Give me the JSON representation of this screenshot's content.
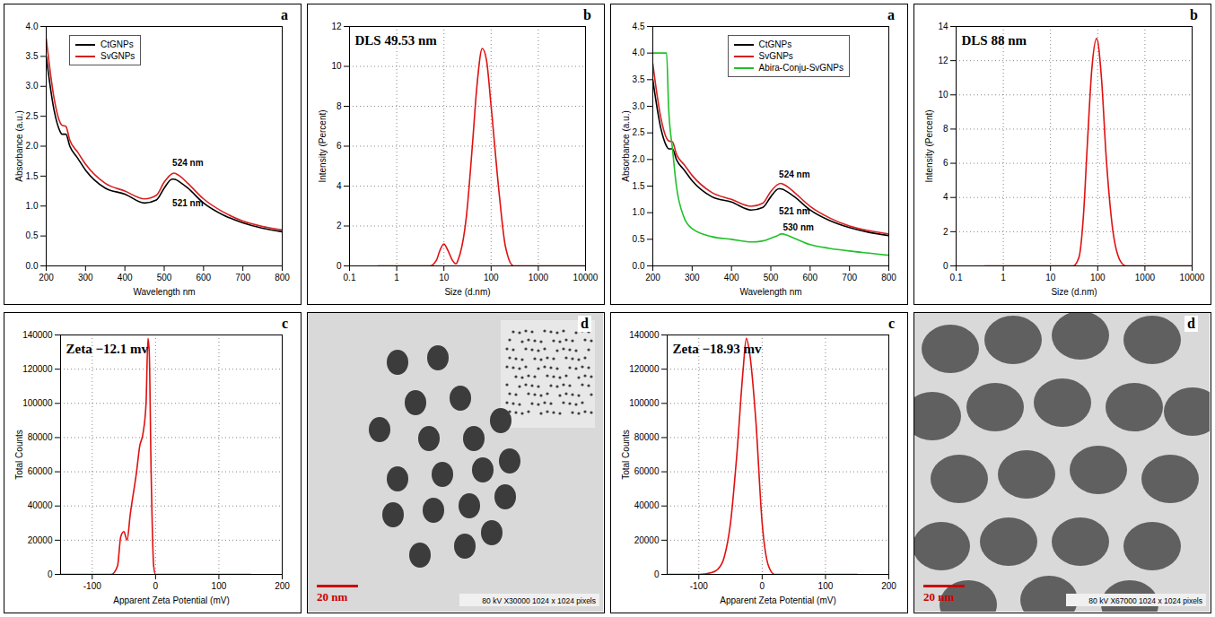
{
  "chart_data": [
    {
      "type": "line",
      "panel_label": "a",
      "x_label": "Wavelength nm",
      "y_label": "Absorbance (a.u.)",
      "x": [
        200,
        220,
        235,
        240,
        250,
        260,
        280,
        300,
        350,
        400,
        450,
        480,
        500,
        520,
        525,
        530,
        540,
        560,
        600,
        650,
        700,
        750,
        800
      ],
      "series": [
        {
          "name": "CtGNPs",
          "color": "#000000",
          "values": [
            3.5,
            2.6,
            2.25,
            2.2,
            2.2,
            2.0,
            1.8,
            1.6,
            1.3,
            1.2,
            1.05,
            1.1,
            1.3,
            1.45,
            1.45,
            1.44,
            1.4,
            1.3,
            1.05,
            0.85,
            0.72,
            0.63,
            0.57
          ]
        },
        {
          "name": "SvGNPs",
          "color": "#d62020",
          "values": [
            3.8,
            2.8,
            2.4,
            2.35,
            2.33,
            2.1,
            1.9,
            1.7,
            1.38,
            1.25,
            1.12,
            1.18,
            1.4,
            1.54,
            1.55,
            1.54,
            1.5,
            1.38,
            1.12,
            0.9,
            0.75,
            0.66,
            0.6
          ]
        }
      ],
      "xlim": [
        200,
        800
      ],
      "xticks": [
        200,
        300,
        400,
        500,
        600,
        700,
        800
      ],
      "ylim": [
        0,
        4
      ],
      "yticks": [
        {
          "value": 0,
          "label": "0.0"
        },
        0.5,
        {
          "value": 1,
          "label": "1.0"
        },
        1.5,
        {
          "value": 2,
          "label": "2.0"
        },
        2.5,
        {
          "value": 3,
          "label": "3.0"
        },
        3.5,
        {
          "value": 4,
          "label": "4.0"
        }
      ],
      "legend": "top-left",
      "annotations": [
        {
          "text": "524 nm",
          "x": 560,
          "y": 1.72
        },
        {
          "text": "521 nm",
          "x": 560,
          "y": 1.05
        }
      ]
    },
    {
      "type": "line",
      "panel_label": "b",
      "x_label": "Size (d.nm)",
      "y_label": "Intensity (Percent)",
      "log": "x",
      "grid": true,
      "x": [
        0.4,
        1,
        5,
        7,
        8,
        10,
        12,
        15,
        18,
        20,
        30,
        40,
        50,
        65,
        80,
        100,
        150,
        200,
        300,
        1000,
        10000
      ],
      "values": [
        0,
        0,
        0,
        0.3,
        0.7,
        1.1,
        0.8,
        0.3,
        0.1,
        0.3,
        2.5,
        6,
        9,
        10.9,
        10.3,
        8,
        3.5,
        1,
        0,
        0,
        0
      ],
      "color": "#e01010",
      "xlim": [
        0.1,
        10000
      ],
      "xticks": [
        0.1,
        1,
        10,
        100,
        1000,
        10000
      ],
      "ylim": [
        0,
        12
      ],
      "yticks": [
        0,
        2,
        4,
        6,
        8,
        10,
        12
      ],
      "annotations": [
        {
          "text": "DLS 49.53 nm"
        }
      ]
    },
    {
      "type": "line",
      "panel_label": "a",
      "x_label": "Wavelength nm",
      "y_label": "Absorbance (a.u.)",
      "x": [
        200,
        220,
        235,
        240,
        250,
        260,
        280,
        300,
        350,
        400,
        450,
        480,
        500,
        520,
        525,
        530,
        540,
        560,
        600,
        650,
        700,
        750,
        800
      ],
      "series": [
        {
          "name": "CtGNPs",
          "color": "#000000",
          "values": [
            3.5,
            2.6,
            2.25,
            2.2,
            2.2,
            2.0,
            1.8,
            1.6,
            1.3,
            1.2,
            1.05,
            1.1,
            1.3,
            1.45,
            1.45,
            1.44,
            1.4,
            1.3,
            1.05,
            0.85,
            0.72,
            0.63,
            0.57
          ]
        },
        {
          "name": "SvGNPs",
          "color": "#d62020",
          "values": [
            3.8,
            2.8,
            2.4,
            2.35,
            2.33,
            2.1,
            1.9,
            1.7,
            1.38,
            1.25,
            1.12,
            1.18,
            1.4,
            1.54,
            1.55,
            1.54,
            1.5,
            1.38,
            1.12,
            0.9,
            0.75,
            0.66,
            0.6
          ]
        },
        {
          "name": "Abira-Conju-SvGNPs",
          "color": "#22c02a",
          "values": [
            4.0,
            4.0,
            4.0,
            3.0,
            2.2,
            1.5,
            0.9,
            0.7,
            0.55,
            0.5,
            0.45,
            0.47,
            0.52,
            0.58,
            0.6,
            0.6,
            0.58,
            0.52,
            0.4,
            0.33,
            0.28,
            0.24,
            0.2
          ]
        }
      ],
      "xlim": [
        200,
        800
      ],
      "xticks": [
        200,
        300,
        400,
        500,
        600,
        700,
        800
      ],
      "ylim": [
        0,
        4.5
      ],
      "yticks": [
        {
          "value": 0,
          "label": "0.0"
        },
        0.5,
        {
          "value": 1,
          "label": "1.0"
        },
        1.5,
        {
          "value": 2,
          "label": "2.0"
        },
        2.5,
        {
          "value": 3,
          "label": "3.0"
        },
        3.5,
        {
          "value": 4,
          "label": "4.0"
        },
        4.5
      ],
      "legend": "top",
      "annotations": [
        {
          "text": "524 nm",
          "x": 560,
          "y": 1.72
        },
        {
          "text": "521 nm",
          "x": 560,
          "y": 1.02
        },
        {
          "text": "530 nm",
          "x": 570,
          "y": 0.72
        }
      ]
    },
    {
      "type": "line",
      "panel_label": "b",
      "x_label": "Size (d.nm)",
      "y_label": "Intensity (Percent)",
      "log": "x",
      "grid": true,
      "x": [
        0.4,
        30,
        40,
        50,
        60,
        75,
        95,
        120,
        150,
        200,
        300,
        400,
        10000
      ],
      "values": [
        0,
        0,
        0.5,
        3,
        7,
        11.5,
        13.3,
        11,
        6.5,
        2.5,
        0.3,
        0,
        0
      ],
      "color": "#e01010",
      "xlim": [
        0.1,
        10000
      ],
      "xticks": [
        0.1,
        1,
        10,
        100,
        1000,
        10000
      ],
      "ylim": [
        0,
        14
      ],
      "yticks": [
        0,
        2,
        4,
        6,
        8,
        10,
        12,
        14
      ],
      "annotations": [
        {
          "text": "DLS 88 nm"
        }
      ]
    },
    {
      "type": "line",
      "panel_label": "c",
      "x_label": "Apparent Zeta Potential (mV)",
      "y_label": "Total Counts",
      "grid": true,
      "x": [
        -150,
        -70,
        -60,
        -55,
        -50,
        -45,
        -40,
        -30,
        -25,
        -20,
        -15,
        -12,
        -10,
        -7,
        -3,
        0,
        150
      ],
      "values": [
        0,
        0,
        5000,
        22000,
        25000,
        20000,
        35000,
        60000,
        75000,
        82000,
        100000,
        138000,
        130000,
        60000,
        5000,
        0,
        0
      ],
      "color": "#e01010",
      "xlim": [
        -150,
        200
      ],
      "xticks": [
        -100,
        0,
        100,
        200
      ],
      "ylim": [
        0,
        140000
      ],
      "yticks": [
        0,
        20000,
        40000,
        60000,
        80000,
        100000,
        120000,
        140000
      ],
      "annotations": [
        {
          "text": "Zeta −12.1 mv"
        }
      ]
    },
    {
      "type": "micrograph",
      "panel_label": "d",
      "scale_bar": "20 nm",
      "caption": "80 kV  X30000  1024 x 1024 pixels"
    },
    {
      "type": "line",
      "panel_label": "c",
      "x_label": "Apparent Zeta Potential (mV)",
      "y_label": "Total Counts",
      "grid": true,
      "x": [
        -150,
        -100,
        -80,
        -70,
        -60,
        -50,
        -40,
        -30,
        -25,
        -20,
        -10,
        0,
        10,
        20,
        150
      ],
      "values": [
        0,
        0,
        1000,
        3000,
        10000,
        30000,
        70000,
        120000,
        138000,
        130000,
        90000,
        30000,
        5000,
        0,
        0
      ],
      "color": "#e01010",
      "xlim": [
        -150,
        200
      ],
      "xticks": [
        -100,
        0,
        100,
        200
      ],
      "ylim": [
        0,
        140000
      ],
      "yticks": [
        0,
        20000,
        40000,
        60000,
        80000,
        100000,
        120000,
        140000
      ],
      "annotations": [
        {
          "text": "Zeta −18.93 mv"
        }
      ]
    },
    {
      "type": "micrograph",
      "panel_label": "d",
      "scale_bar": "20 nm",
      "caption": "80 kV  X67000  1024 x 1024 pixels"
    }
  ]
}
